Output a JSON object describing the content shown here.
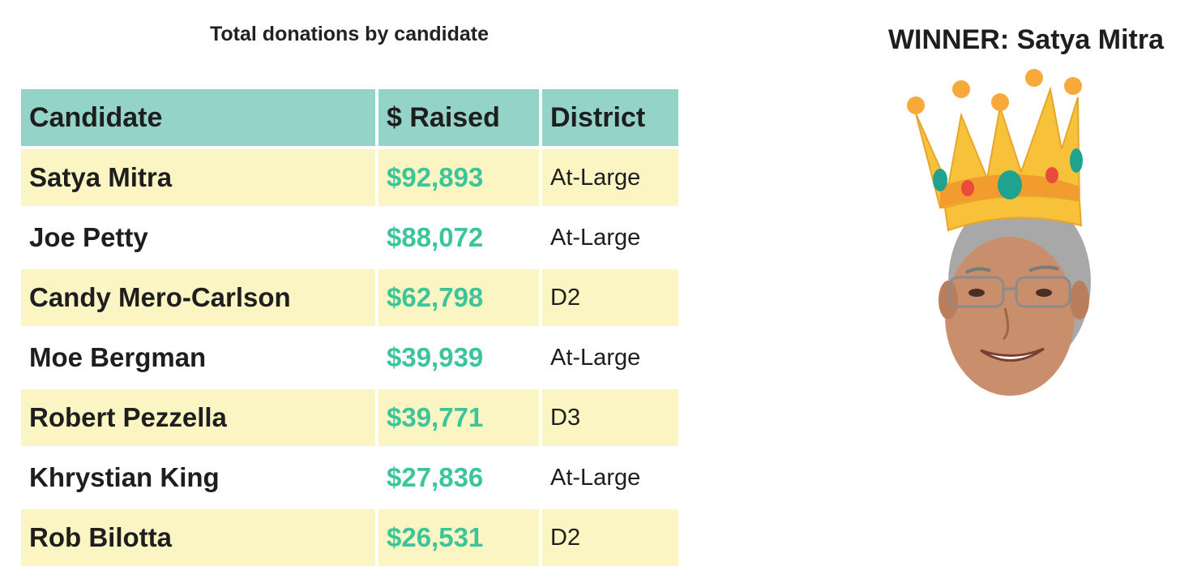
{
  "table": {
    "title": "Total donations by candidate",
    "headers": {
      "candidate": "Candidate",
      "raised": "$ Raised",
      "district": "District"
    },
    "rows": [
      {
        "candidate": "Satya Mitra",
        "raised": "$92,893",
        "district": "At-Large"
      },
      {
        "candidate": "Joe Petty",
        "raised": "$88,072",
        "district": "At-Large"
      },
      {
        "candidate": "Candy Mero-Carlson",
        "raised": "$62,798",
        "district": "D2"
      },
      {
        "candidate": "Moe Bergman",
        "raised": "$39,939",
        "district": "At-Large"
      },
      {
        "candidate": "Robert Pezzella",
        "raised": "$39,771",
        "district": "D3"
      },
      {
        "candidate": "Khrystian King",
        "raised": "$27,836",
        "district": "At-Large"
      },
      {
        "candidate": "Rob Bilotta",
        "raised": "$26,531",
        "district": "D2"
      }
    ]
  },
  "winner": {
    "label": "WINNER: Satya Mitra",
    "icons": [
      "crown-icon",
      "winner-face-photo"
    ]
  },
  "colors": {
    "header_bg": "#94d3c7",
    "stripe_bg": "#fbf5c3",
    "amount_text": "#3cc59a",
    "crown_gold": "#f7c23a"
  }
}
